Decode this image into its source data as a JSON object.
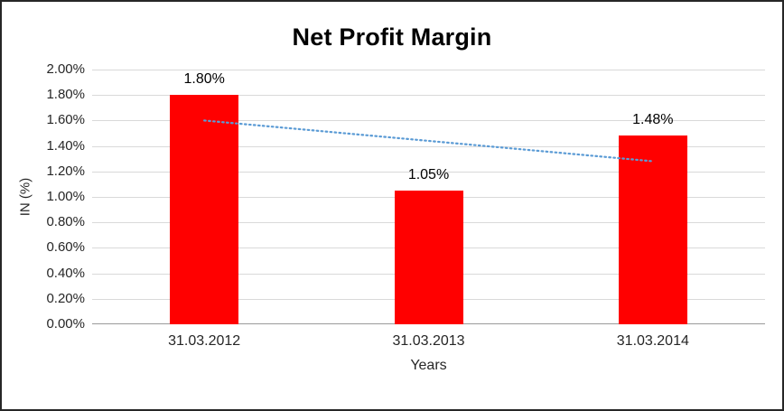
{
  "chart_data": {
    "type": "bar",
    "title": "Net Profit Margin",
    "categories": [
      "31.03.2012",
      "31.03.2013",
      "31.03.2014"
    ],
    "values": [
      1.8,
      1.05,
      1.48
    ],
    "data_labels": [
      "1.80%",
      "1.05%",
      "1.48%"
    ],
    "xlabel": "Years",
    "ylabel": "IN (%)",
    "ylim": [
      0,
      2.0
    ],
    "ytick_step": 0.2,
    "ytick_labels": [
      "0.00%",
      "0.20%",
      "0.40%",
      "0.60%",
      "0.80%",
      "1.00%",
      "1.20%",
      "1.40%",
      "1.60%",
      "1.80%",
      "2.00%"
    ],
    "grid": true,
    "legend": "none",
    "bar_color": "#ff0000",
    "trendline": {
      "style": "dotted",
      "start_value": 1.6,
      "end_value": 1.28,
      "color": "#5b9bd5"
    }
  }
}
